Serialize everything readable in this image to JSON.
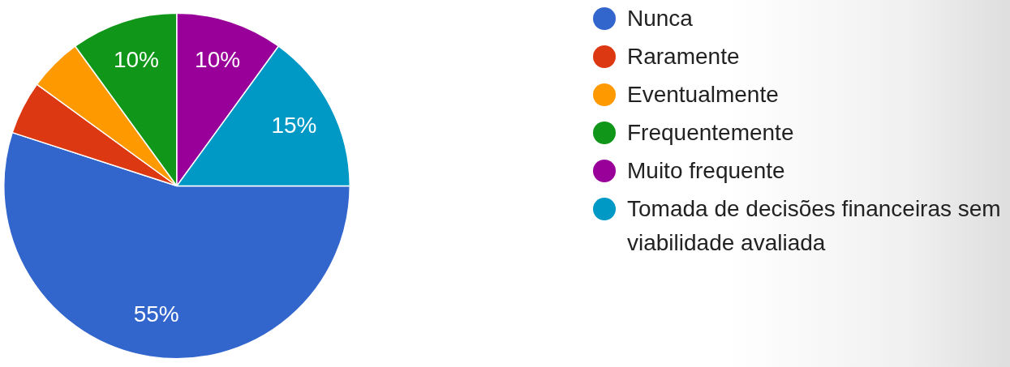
{
  "chart_data": {
    "type": "pie",
    "categories": [
      "Nunca",
      "Raramente",
      "Eventualmente",
      "Frequentemente",
      "Muito frequente",
      "Tomada de decisões financeiras sem viabilidade avaliada"
    ],
    "values": [
      55,
      5,
      5,
      10,
      10,
      15
    ],
    "colors": [
      "#3366cc",
      "#dc3912",
      "#ff9900",
      "#109618",
      "#990099",
      "#0099c6"
    ],
    "value_labels": [
      "55%",
      null,
      null,
      "10%",
      "10%",
      "15%"
    ],
    "legend": "right"
  }
}
